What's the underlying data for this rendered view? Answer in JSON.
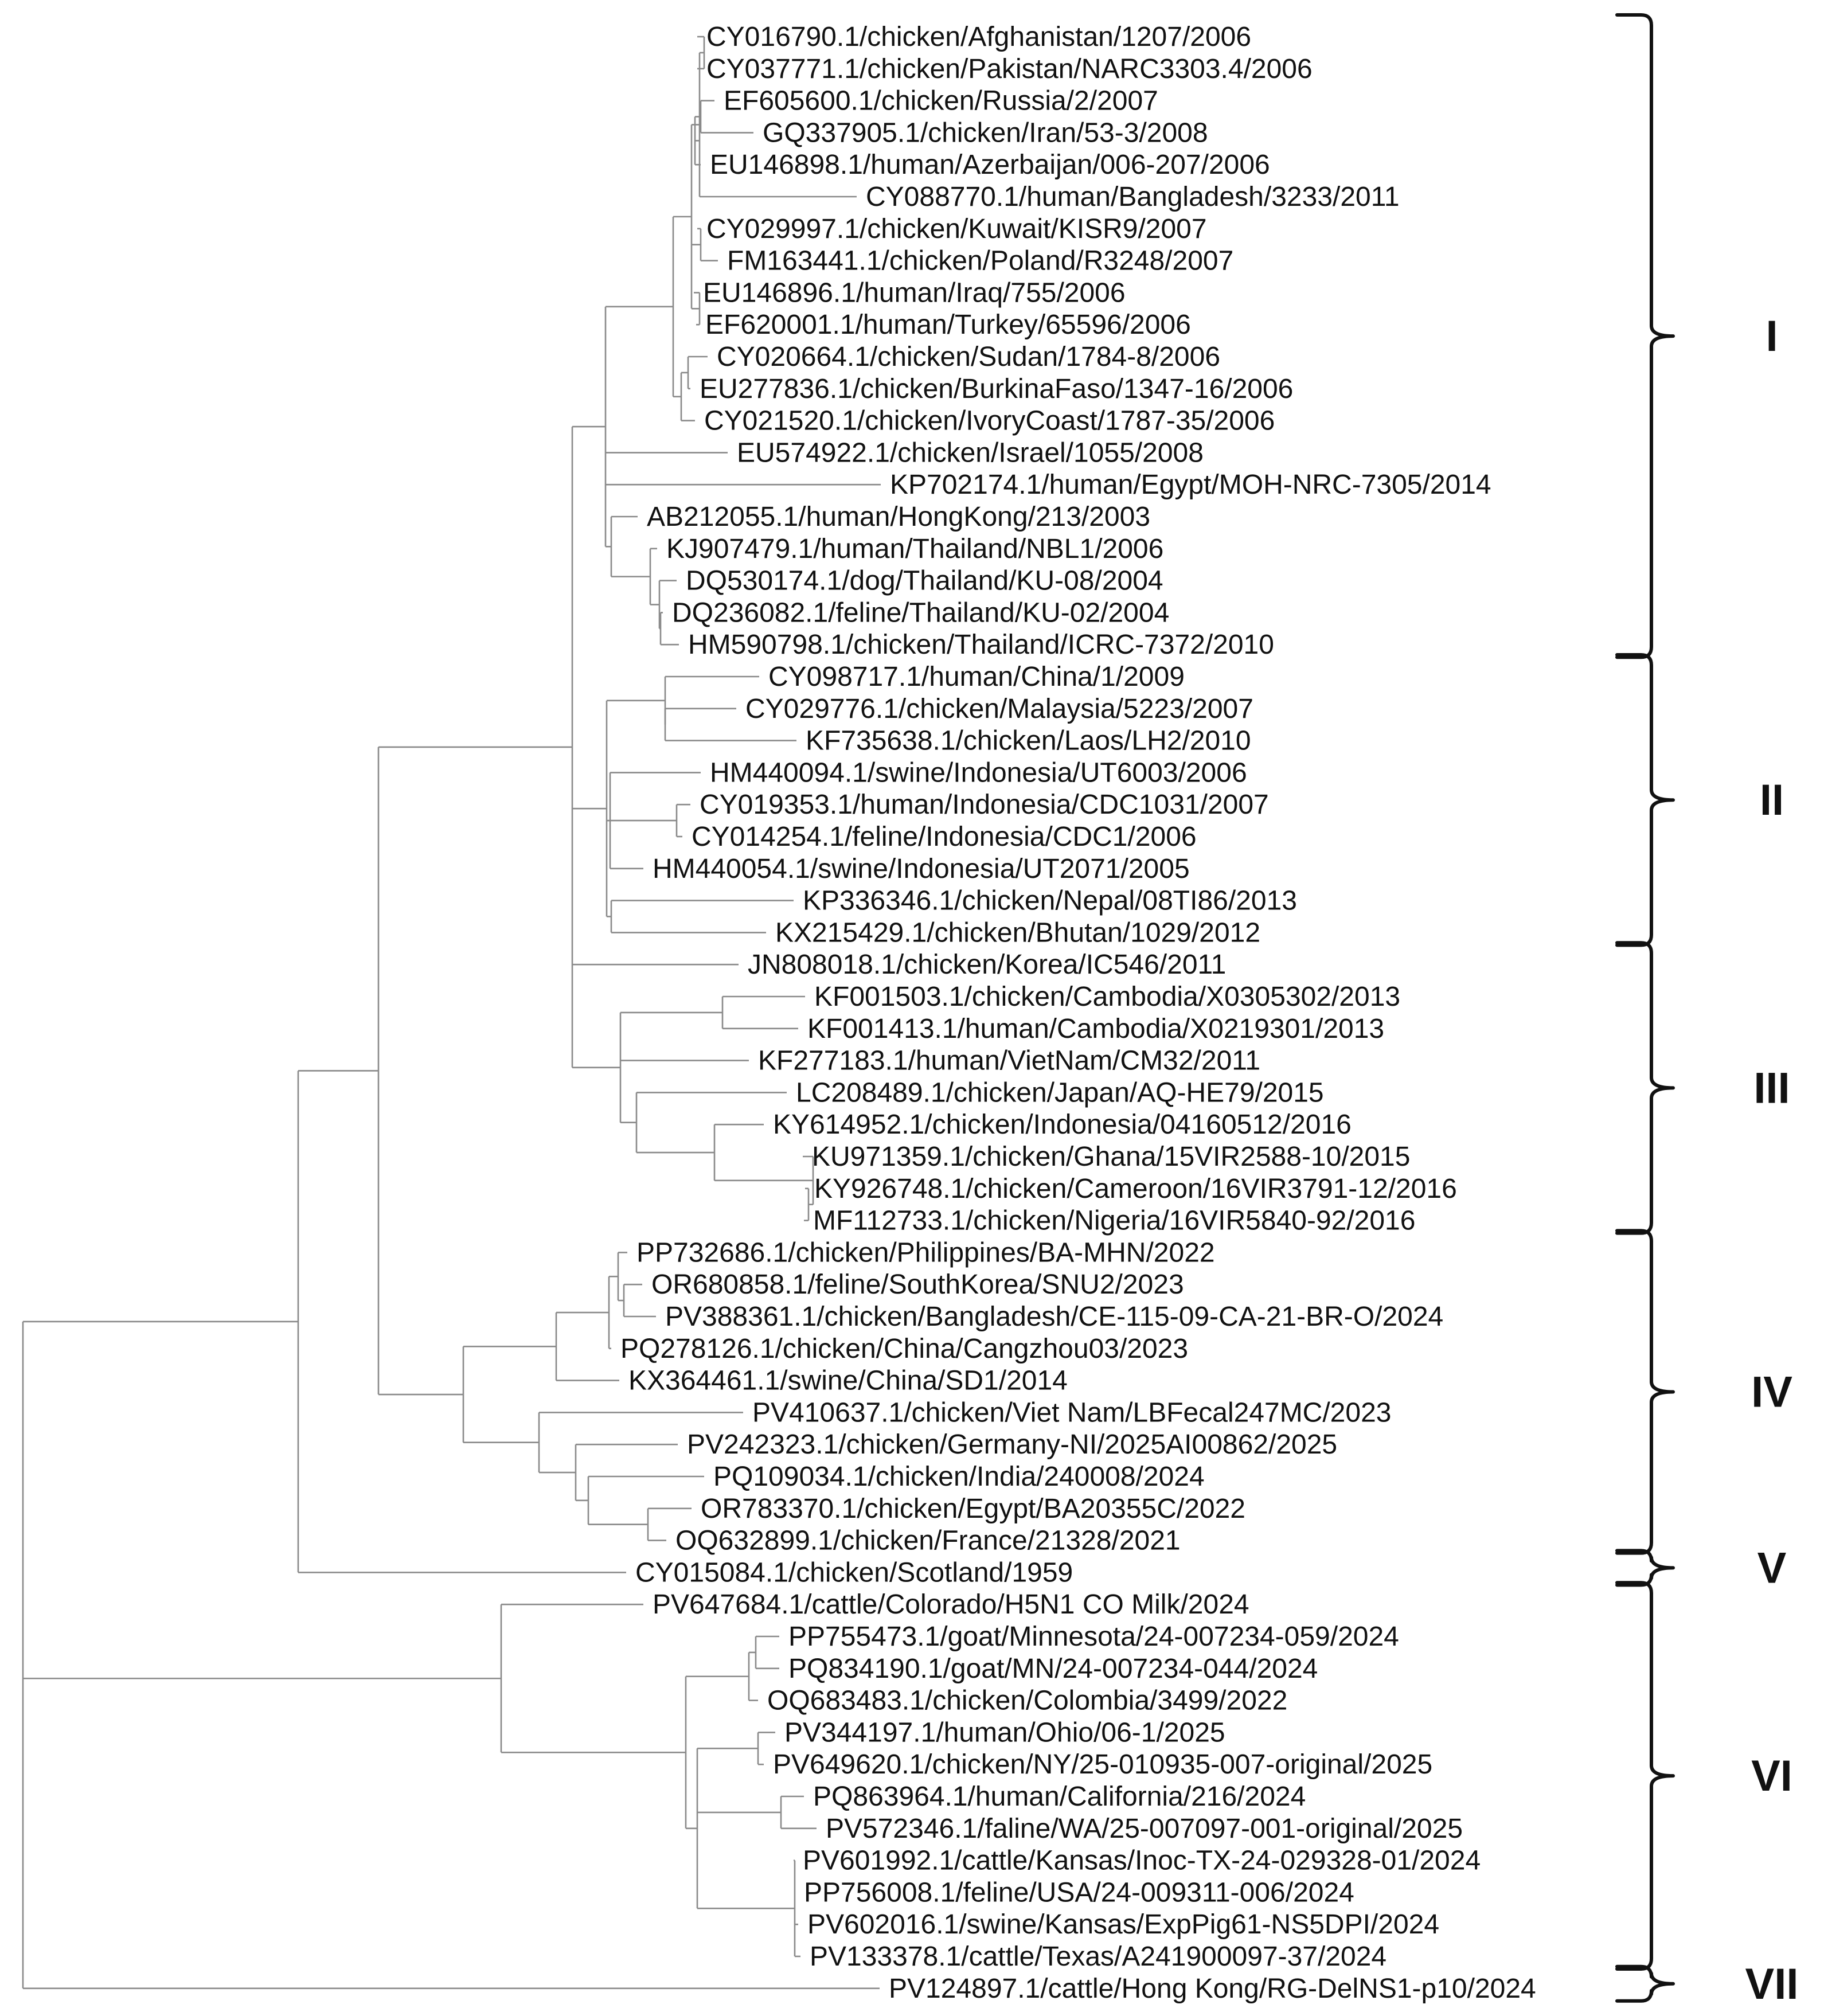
{
  "figure": {
    "type": "phylogenetic-tree",
    "accent_color": "#111111",
    "branch_color": "#8a8a8a"
  },
  "taxa": [
    "CY016790.1/chicken/Afghanistan/1207/2006",
    "CY037771.1/chicken/Pakistan/NARC3303.4/2006",
    "EF605600.1/chicken/Russia/2/2007",
    "GQ337905.1/chicken/Iran/53-3/2008",
    "EU146898.1/human/Azerbaijan/006-207/2006",
    "CY088770.1/human/Bangladesh/3233/2011",
    "CY029997.1/chicken/Kuwait/KISR9/2007",
    "FM163441.1/chicken/Poland/R3248/2007",
    "EU146896.1/human/Iraq/755/2006",
    "EF620001.1/human/Turkey/65596/2006",
    "CY020664.1/chicken/Sudan/1784-8/2006",
    "EU277836.1/chicken/BurkinaFaso/1347-16/2006",
    "CY021520.1/chicken/IvoryCoast/1787-35/2006",
    "EU574922.1/chicken/Israel/1055/2008",
    "KP702174.1/human/Egypt/MOH-NRC-7305/2014",
    "AB212055.1/human/HongKong/213/2003",
    "KJ907479.1/human/Thailand/NBL1/2006",
    "DQ530174.1/dog/Thailand/KU-08/2004",
    "DQ236082.1/feline/Thailand/KU-02/2004",
    "HM590798.1/chicken/Thailand/ICRC-7372/2010",
    "CY098717.1/human/China/1/2009",
    "CY029776.1/chicken/Malaysia/5223/2007",
    "KF735638.1/chicken/Laos/LH2/2010",
    "HM440094.1/swine/Indonesia/UT6003/2006",
    "CY019353.1/human/Indonesia/CDC1031/2007",
    "CY014254.1/feline/Indonesia/CDC1/2006",
    "HM440054.1/swine/Indonesia/UT2071/2005",
    "KP336346.1/chicken/Nepal/08TI86/2013",
    "KX215429.1/chicken/Bhutan/1029/2012",
    "JN808018.1/chicken/Korea/IC546/2011",
    "KF001503.1/chicken/Cambodia/X0305302/2013",
    "KF001413.1/human/Cambodia/X0219301/2013",
    "KF277183.1/human/VietNam/CM32/2011",
    "LC208489.1/chicken/Japan/AQ-HE79/2015",
    "KY614952.1/chicken/Indonesia/04160512/2016",
    "KU971359.1/chicken/Ghana/15VIR2588-10/2015",
    "KY926748.1/chicken/Cameroon/16VIR3791-12/2016",
    "MF112733.1/chicken/Nigeria/16VIR5840-92/2016",
    "PP732686.1/chicken/Philippines/BA-MHN/2022",
    "OR680858.1/feline/SouthKorea/SNU2/2023",
    "PV388361.1/chicken/Bangladesh/CE-115-09-CA-21-BR-O/2024",
    "PQ278126.1/chicken/China/Cangzhou03/2023",
    "KX364461.1/swine/China/SD1/2014",
    "PV410637.1/chicken/Viet Nam/LBFecal247MC/2023",
    "PV242323.1/chicken/Germany-NI/2025AI00862/2025",
    "PQ109034.1/chicken/India/240008/2024",
    "OR783370.1/chicken/Egypt/BA20355C/2022",
    "OQ632899.1/chicken/France/21328/2021",
    "CY015084.1/chicken/Scotland/1959",
    "PV647684.1/cattle/Colorado/H5N1 CO Milk/2024",
    "PP755473.1/goat/Minnesota/24-007234-059/2024",
    "PQ834190.1/goat/MN/24-007234-044/2024",
    "OQ683483.1/chicken/Colombia/3499/2022",
    "PV344197.1/human/Ohio/06-1/2025",
    "PV649620.1/chicken/NY/25-010935-007-original/2025",
    "PQ863964.1/human/California/216/2024",
    "PV572346.1/faline/WA/25-007097-001-original/2025",
    "PV601992.1/cattle/Kansas/Inoc-TX-24-029328-01/2024",
    "PP756008.1/feline/USA/24-009311-006/2024",
    "PV602016.1/swine/Kansas/ExpPig61-NS5DPI/2024",
    "PV133378.1/cattle/Texas/A241900097-37/2024",
    "PV124897.1/cattle/Hong Kong/RG-DelNS1-p10/2024"
  ],
  "clades": [
    {
      "label": "I",
      "first_taxon": 0,
      "last_taxon": 19
    },
    {
      "label": "II",
      "first_taxon": 20,
      "last_taxon": 28
    },
    {
      "label": "III",
      "first_taxon": 29,
      "last_taxon": 37
    },
    {
      "label": "IV",
      "first_taxon": 38,
      "last_taxon": 47
    },
    {
      "label": "V",
      "first_taxon": 48,
      "last_taxon": 48
    },
    {
      "label": "VI",
      "first_taxon": 49,
      "last_taxon": 60
    },
    {
      "label": "VII",
      "first_taxon": 61,
      "last_taxon": 61
    }
  ]
}
